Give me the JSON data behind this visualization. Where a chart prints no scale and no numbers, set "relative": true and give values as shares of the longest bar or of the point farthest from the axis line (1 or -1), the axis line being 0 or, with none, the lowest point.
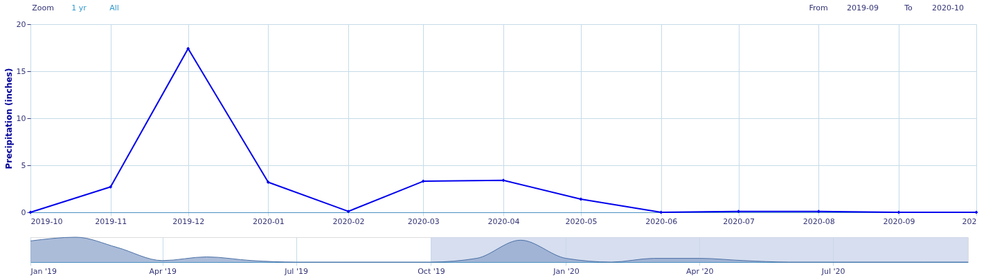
{
  "chart_data": [
    {
      "type": "line",
      "ylabel": "Precipitation (inches)",
      "x": [
        "2019-10",
        "2019-11",
        "2019-12",
        "2020-01",
        "2020-02",
        "2020-03",
        "2020-04",
        "2020-05",
        "2020-06",
        "2020-07",
        "2020-08",
        "2020-09",
        "2020-10"
      ],
      "series": [
        {
          "color": "#0000ee",
          "values": [
            0,
            2.7,
            17.4,
            3.2,
            0.1,
            3.3,
            3.4,
            1.4,
            0,
            0.1,
            0.1,
            0,
            0
          ]
        }
      ],
      "xlim": [
        "2019-10",
        "2020-10"
      ],
      "xticks": [
        "2019-10",
        "2019-11",
        "2019-12",
        "2020-01",
        "2020-02",
        "2020-03",
        "2020-04",
        "2020-05",
        "2020-06",
        "2020-07",
        "2020-08",
        "2020-09",
        {
          "value": "2020-10",
          "label": "202"
        }
      ],
      "ylim": [
        0,
        20
      ],
      "yticks": [
        0,
        5,
        10,
        15,
        20
      ],
      "grid": true,
      "marker": "diamond",
      "line_style": "solid",
      "annotations": [
        "Zoom",
        "1 yr",
        "All",
        "From",
        "2019-09",
        "To",
        "2020-10"
      ]
    },
    {
      "type": "area",
      "relative": true,
      "x": [
        "2019-01",
        "2019-02",
        "2019-03",
        "2019-04",
        "2019-05",
        "2019-06",
        "2019-07",
        "2019-08",
        "2019-09",
        "2019-10",
        "2019-11",
        "2019-12",
        "2020-01",
        "2020-02",
        "2020-03",
        "2020-04",
        "2020-05",
        "2020-06",
        "2020-07",
        "2020-08",
        "2020-09",
        "2020-10"
      ],
      "series": [
        {
          "color": "#8fa6cc",
          "values": [
            0.85,
            1,
            0.59,
            0.06,
            0.21,
            0.06,
            0,
            0,
            0,
            0,
            0.15,
            0.88,
            0.15,
            0,
            0.15,
            0.15,
            0.06,
            0,
            0,
            0,
            0,
            0
          ]
        }
      ],
      "xlim": [
        "2019-01",
        "2020-10"
      ],
      "xticks": [
        {
          "value": "2019-01",
          "label": "Jan '19"
        },
        {
          "value": "2019-04",
          "label": "Apr '19"
        },
        {
          "value": "2019-07",
          "label": "Jul '19"
        },
        {
          "value": "2019-10",
          "label": "Oct '19"
        },
        {
          "value": "2020-01",
          "label": "Jan '20"
        },
        {
          "value": "2020-04",
          "label": "Apr '20"
        },
        {
          "value": "2020-07",
          "label": "Jul '20"
        }
      ],
      "grid": "x",
      "bands": [
        {
          "axis": "x",
          "from": "2019-10",
          "to": "2020-10",
          "color": "#ccd6eb"
        }
      ]
    }
  ]
}
